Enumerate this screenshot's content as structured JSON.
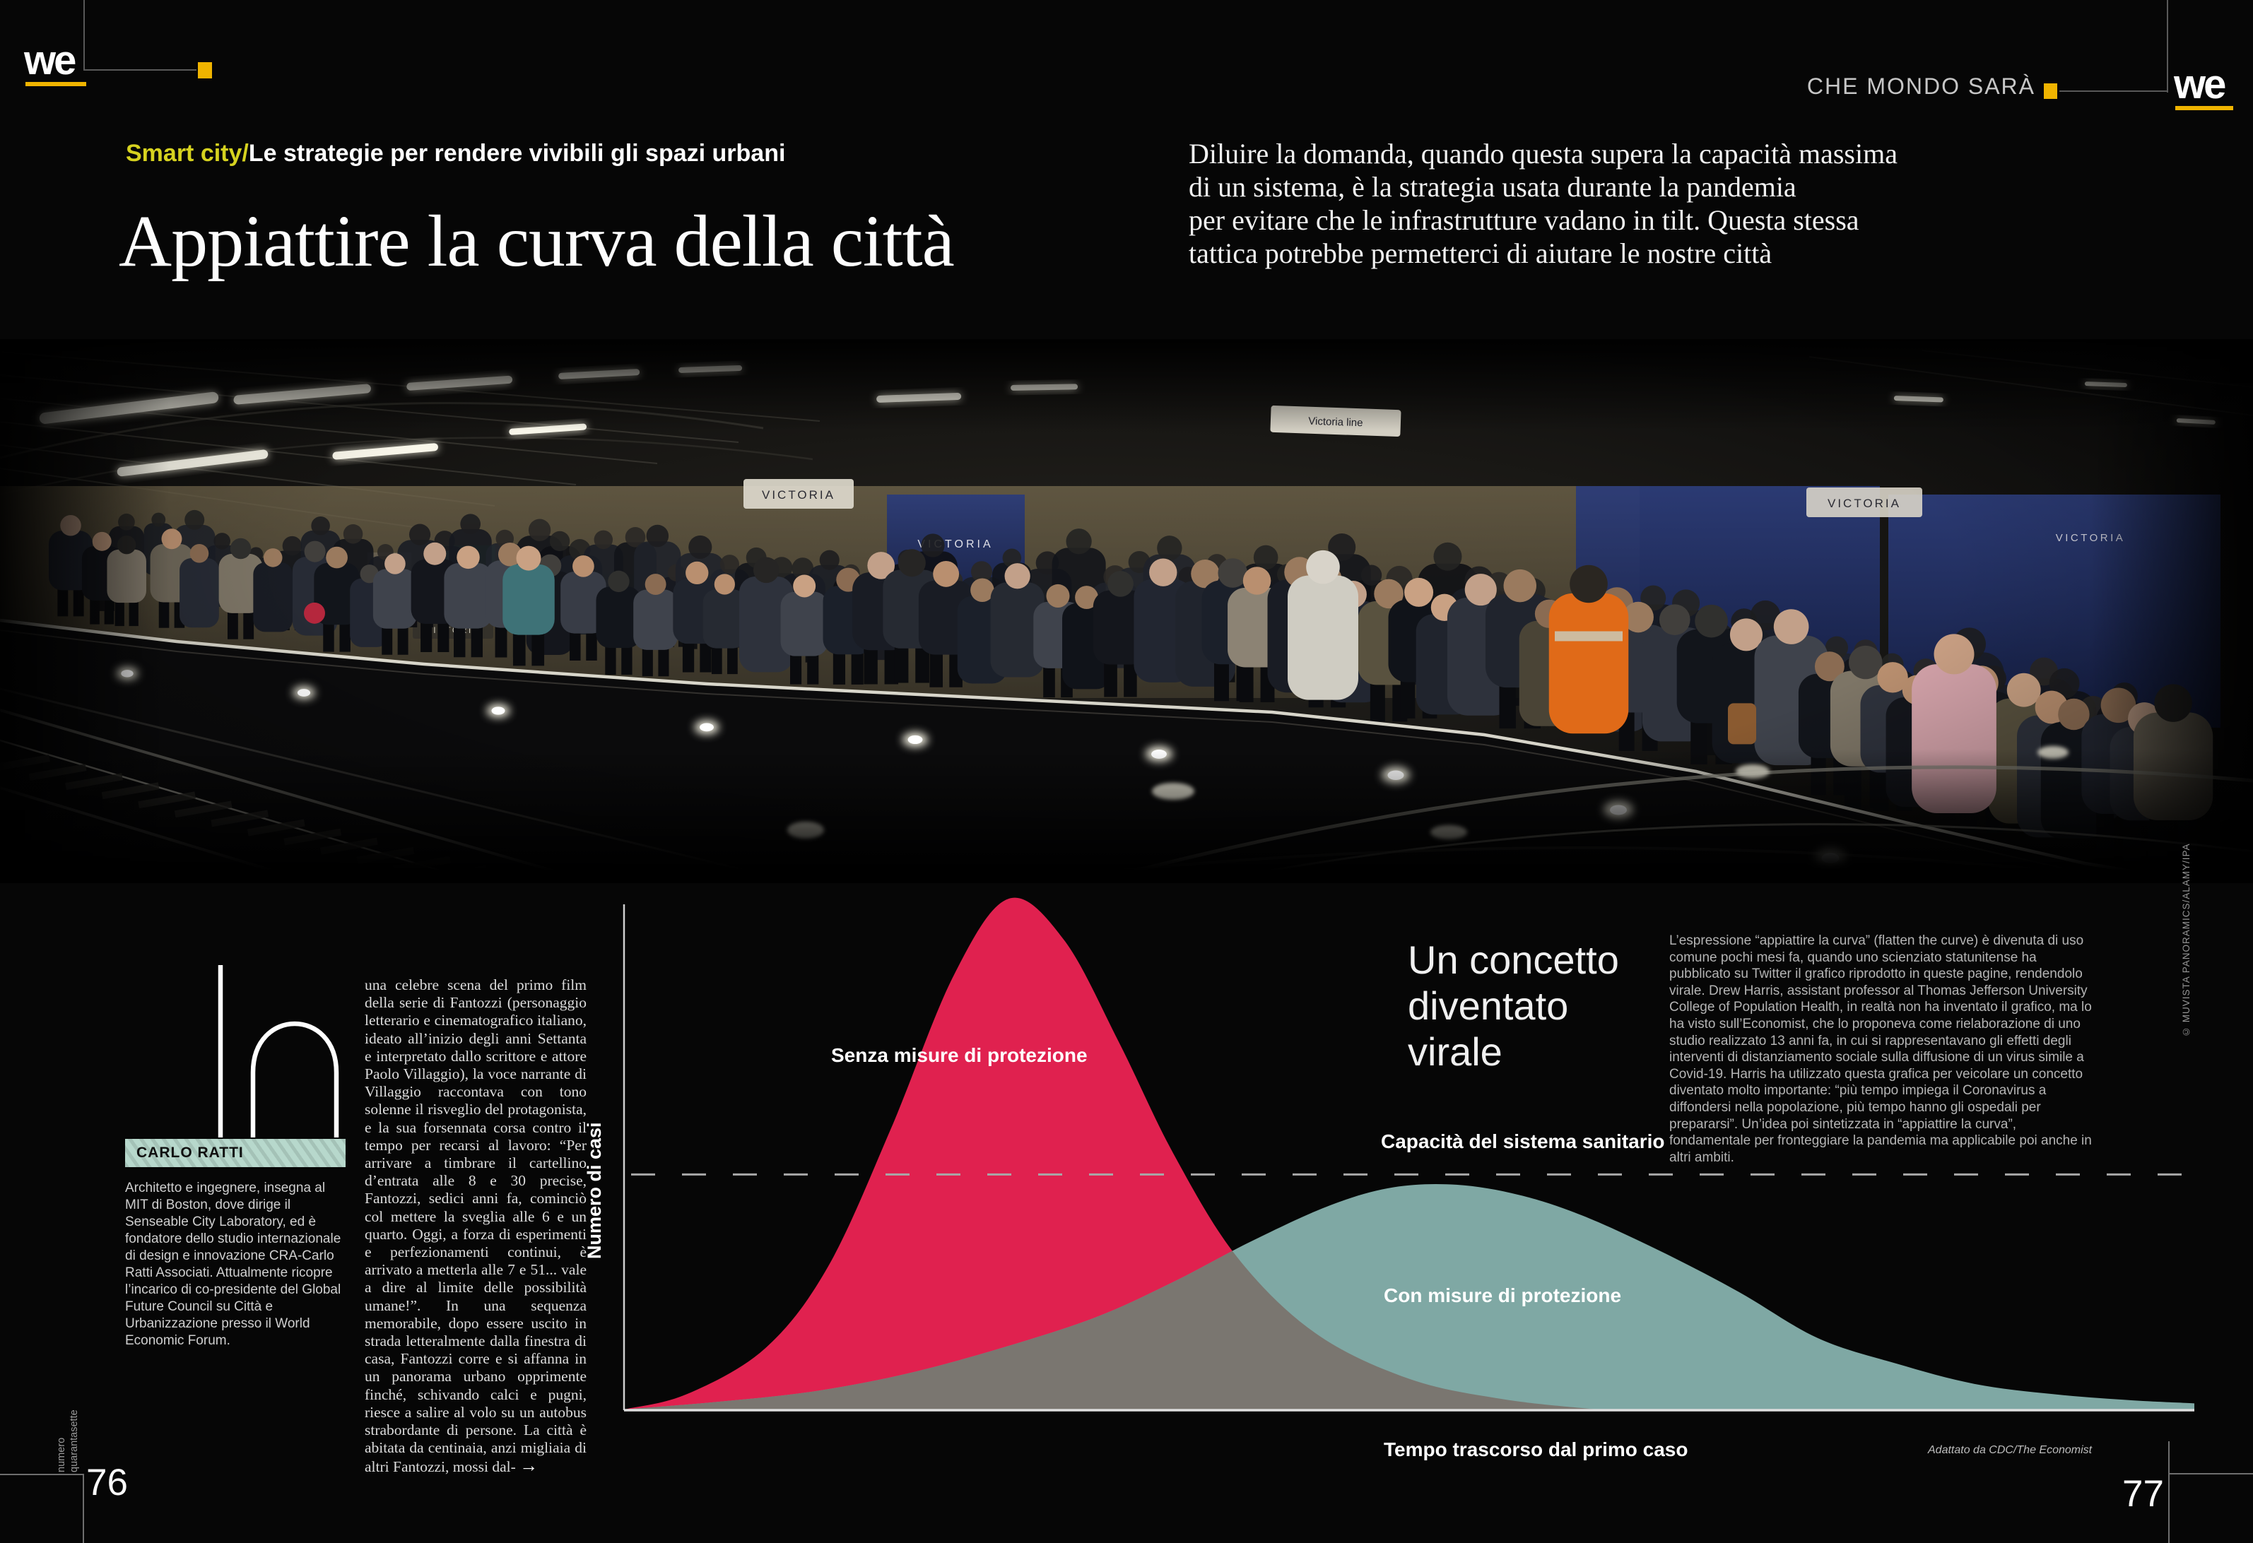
{
  "page": {
    "accent_yellow": "#f0b400"
  },
  "header": {
    "logo": "we",
    "section": "CHE MONDO SARÀ",
    "kicker_highlight": "Smart city/",
    "kicker_text": "Le strategie per rendere vivibili gli spazi urbani",
    "headline": "Appiattire la curva della città",
    "standfirst": [
      "Diluire la domanda, quando questa supera la capacità massima",
      "di un sistema, è la strategia usata durante la pandemia",
      "per evitare che le infrastrutture vadano in tilt. Questa stessa",
      "tattica potrebbe permetterci di aiutare le nostre città"
    ]
  },
  "photo": {
    "sign_victoria": "VICTORIA",
    "sign_line": "Victoria line",
    "credit": "© MUVISTA PANORAMICS/ALAMY/IPA"
  },
  "article": {
    "dropcap": "In",
    "body": "una celebre scena del primo film della serie di Fantozzi (personaggio letterario e cinematografico italiano, ideato all’inizio degli anni Settanta e interpretato dallo scrittore e attore Paolo Villaggio), la voce narrante di Villaggio raccontava con tono solenne il risveglio del protagonista, e la sua forsennata corsa contro il tempo per recarsi al lavoro: “Per arrivare a timbrare il cartellino d’entrata alle 8 e 30 precise, Fantozzi, sedici anni fa, cominciò col mettere la sveglia alle 6 e un quarto. Oggi, a forza di esperimenti e perfezionamenti continui, è arrivato a metterla alle 7 e 51... vale a dire al limite delle possibilità umane!”. In una sequenza memorabile, dopo essere uscito in strada letteralmente dalla finestra di casa, Fantozzi corre e si affanna in un panorama urbano opprimente finché, schivando calci e pugni, riesce a salire al volo su un autobus strabordante di persone. La città è abitata da centinaia, anzi migliaia di altri Fantozzi, mossi dal-",
    "continuation": "→"
  },
  "author": {
    "name": "CARLO RATTI",
    "bio": "Architetto e ingegnere, insegna al MIT di Boston, dove dirige il Senseable City Laboratory, ed è fondatore dello studio internazionale di design e innovazione CRA-Carlo Ratti Associati. Attualmente ricopre l’incarico di co-presidente del Global Future Council su Città e Urbanizzazione presso il World Economic Forum."
  },
  "sidebar": {
    "heading": [
      "Un concetto",
      "diventato",
      "virale"
    ],
    "body": "L’espressione “appiattire la curva” (flatten the curve) è divenuta di uso comune pochi mesi fa, quando uno scienziato statunitense ha pubblicato su Twitter il grafico riprodotto in queste pagine, rendendolo virale. Drew Harris, assistant professor al Thomas Jefferson University College of Population Health, in realtà non ha inventato il grafico, ma lo ha visto sull’Economist, che lo proponeva come rielaborazione di uno studio realizzato 13 anni fa, in cui si rappresentavano gli effetti degli interventi di distanziamento sociale sulla diffusione di un virus simile a Covid-19. Harris ha utilizzato questa grafica per veicolare un concetto diventato molto importante: “più tempo impiega il Coronavirus a diffondersi nella popolazione, più tempo hanno gli ospedali per prepararsi”. Un’idea poi sintetizzata in “appiattire la curva”, fondamentale per fronteggiare la pandemia ma applicabile poi anche in altri ambiti."
  },
  "chart_data": {
    "type": "area",
    "title": "",
    "xlabel": "Tempo trascorso dal primo caso",
    "ylabel": "Numero di casi",
    "source": "Adattato da CDC/The Economist",
    "x_range": [
      0,
      100
    ],
    "y_range": [
      0,
      100
    ],
    "grid": false,
    "axis_ticks": "none",
    "legend_position": "labels-on-areas",
    "capacity_line": {
      "label": "Capacità del sistema sanitario",
      "value": 46,
      "style": "dashed",
      "color": "#a8a8a8"
    },
    "overlap_color": "#7a7670",
    "series": [
      {
        "name": "Senza misure di protezione",
        "color": "#e0214f",
        "points": [
          [
            0,
            0
          ],
          [
            4,
            3
          ],
          [
            9,
            12
          ],
          [
            13,
            28
          ],
          [
            17,
            55
          ],
          [
            21,
            85
          ],
          [
            24.5,
            100
          ],
          [
            28,
            92
          ],
          [
            31.5,
            72
          ],
          [
            35,
            50
          ],
          [
            39,
            30
          ],
          [
            44,
            15
          ],
          [
            50,
            6
          ],
          [
            56,
            2
          ],
          [
            62,
            0
          ]
        ]
      },
      {
        "name": "Con misure di protezione",
        "color": "#7fa8a4",
        "points": [
          [
            0,
            0
          ],
          [
            6,
            1.5
          ],
          [
            12,
            3.5
          ],
          [
            18,
            7
          ],
          [
            24,
            12
          ],
          [
            30,
            18
          ],
          [
            35,
            25
          ],
          [
            40,
            33
          ],
          [
            45,
            40
          ],
          [
            49,
            43.5
          ],
          [
            53,
            44
          ],
          [
            57,
            42
          ],
          [
            61,
            38
          ],
          [
            66,
            31
          ],
          [
            71,
            23
          ],
          [
            76,
            14
          ],
          [
            81,
            9
          ],
          [
            86,
            5
          ],
          [
            91,
            3
          ],
          [
            96,
            1.8
          ],
          [
            100,
            1.2
          ]
        ]
      }
    ]
  },
  "footer": {
    "page_left": "76",
    "page_right": "77",
    "issue_line1": "numero",
    "issue_line2": "quarantasette"
  }
}
